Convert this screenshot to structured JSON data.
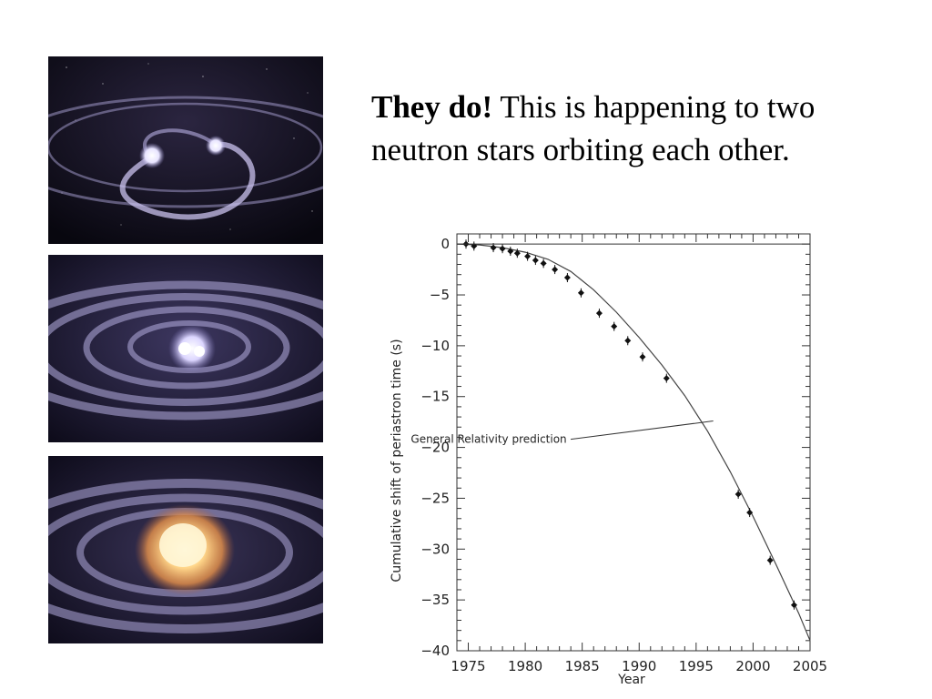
{
  "slide": {
    "headline_bold": "They do!",
    "headline_rest": " This is happening to two neutron stars orbiting each other."
  },
  "images": [
    {
      "name": "binary-neutron-stars-orbiting"
    },
    {
      "name": "neutron-stars-near-merger"
    },
    {
      "name": "neutron-star-merger-explosion"
    }
  ],
  "chart_data": {
    "type": "scatter",
    "xlabel": "Year",
    "ylabel": "Cumulative shift of periastron time (s)",
    "xlim": [
      1974,
      2005
    ],
    "ylim": [
      -40,
      1
    ],
    "x_ticks": [
      1975,
      1980,
      1985,
      1990,
      1995,
      2000,
      2005
    ],
    "y_ticks": [
      0,
      -5,
      -10,
      -15,
      -20,
      -25,
      -30,
      -35,
      -40
    ],
    "grid": false,
    "series": [
      {
        "kind": "points",
        "x": [
          1974.8,
          1975.5,
          1977.2,
          1978.0,
          1978.7,
          1979.3,
          1980.2,
          1980.9,
          1981.6,
          1982.6,
          1983.7,
          1984.9,
          1986.5,
          1987.8,
          1989.0,
          1990.3,
          1992.4,
          1998.7,
          1999.7,
          2001.5,
          2003.6
        ],
        "y": [
          0.0,
          -0.2,
          -0.35,
          -0.45,
          -0.7,
          -0.9,
          -1.2,
          -1.6,
          -1.9,
          -2.5,
          -3.3,
          -4.8,
          -6.8,
          -8.1,
          -9.5,
          -11.1,
          -13.2,
          -24.6,
          -26.4,
          -31.1,
          -35.5
        ]
      },
      {
        "kind": "curve",
        "x": [
          1974.0,
          1976.0,
          1978.0,
          1980.0,
          1982.0,
          1984.0,
          1986.0,
          1988.0,
          1990.0,
          1992.0,
          1994.0,
          1996.0,
          1998.0,
          2000.0,
          2002.0,
          2004.0,
          2005.0
        ],
        "y": [
          0.0,
          -0.08,
          -0.35,
          -0.8,
          -1.5,
          -2.7,
          -4.5,
          -6.7,
          -9.2,
          -11.9,
          -14.9,
          -18.4,
          -22.4,
          -26.8,
          -31.5,
          -36.3,
          -39.0
        ]
      }
    ],
    "annotations": [
      {
        "text": "General Relativity prediction",
        "x": 1996.5,
        "y": -19.2
      }
    ]
  }
}
